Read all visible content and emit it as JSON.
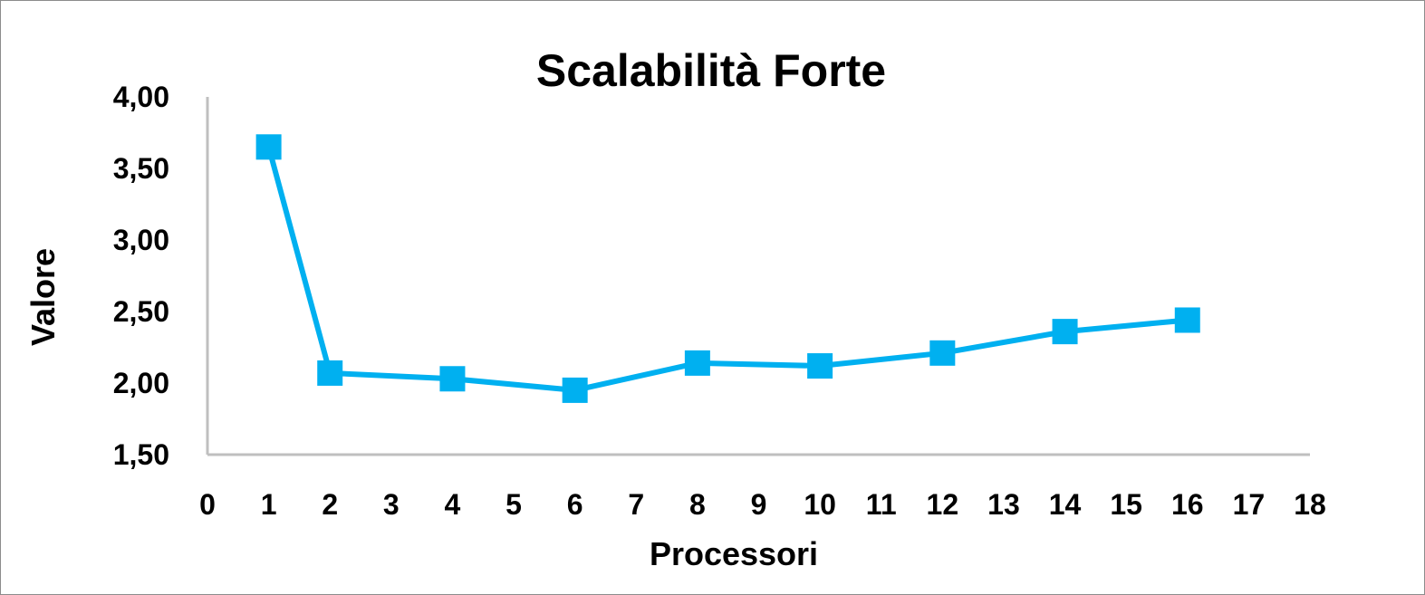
{
  "chart_data": {
    "type": "scatter",
    "title": "Scalabilità Forte",
    "xlabel": "Processori",
    "ylabel": "Valore",
    "xlim": [
      0,
      18
    ],
    "ylim": [
      1.5,
      4.0
    ],
    "x_ticks": [
      0,
      1,
      2,
      3,
      4,
      5,
      6,
      7,
      8,
      9,
      10,
      11,
      12,
      13,
      14,
      15,
      16,
      17,
      18
    ],
    "y_ticks": [
      "1,50",
      "2,00",
      "2,50",
      "3,00",
      "3,50",
      "4,00"
    ],
    "y_tick_values": [
      1.5,
      2.0,
      2.5,
      3.0,
      3.5,
      4.0
    ],
    "grid": false,
    "legend": "none",
    "series": [
      {
        "color": "#00b0f0",
        "marker": "square",
        "connected": true,
        "x": [
          1,
          2,
          4,
          6,
          8,
          10,
          12,
          14,
          16
        ],
        "y": [
          3.65,
          2.07,
          2.03,
          1.95,
          2.14,
          2.12,
          2.21,
          2.36,
          2.44
        ]
      }
    ],
    "axis_color": "#bfbfbf",
    "frame_color": "#8c8c8c"
  }
}
